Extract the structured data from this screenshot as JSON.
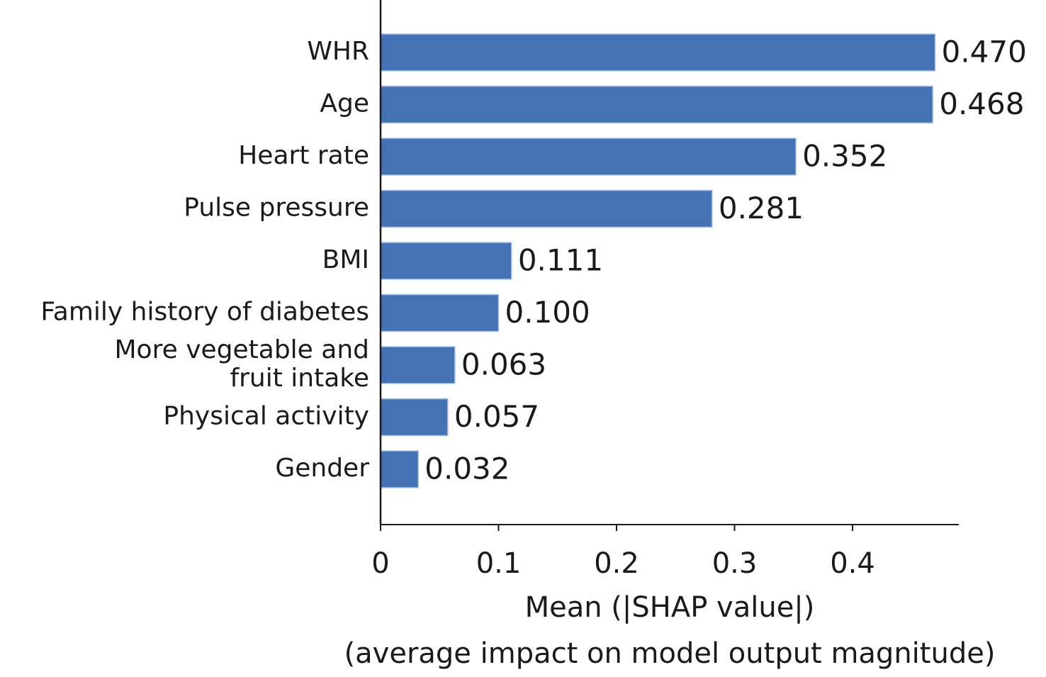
{
  "chart_data": {
    "type": "bar",
    "orientation": "horizontal",
    "categories": [
      [
        "WHR"
      ],
      [
        "Age"
      ],
      [
        "Heart rate"
      ],
      [
        "Pulse pressure"
      ],
      [
        "BMI"
      ],
      [
        "Family history of diabetes"
      ],
      [
        "More vegetable and",
        "fruit intake"
      ],
      [
        "Physical activity"
      ],
      [
        "Gender"
      ]
    ],
    "values": [
      0.47,
      0.468,
      0.352,
      0.281,
      0.111,
      0.1,
      0.063,
      0.057,
      0.032
    ],
    "value_labels": [
      "0.470",
      "0.468",
      "0.352",
      "0.281",
      "0.111",
      "0.100",
      "0.063",
      "0.057",
      "0.032"
    ],
    "xticks": [
      0,
      0.1,
      0.2,
      0.3,
      0.4
    ],
    "xtick_labels": [
      "0",
      "0.1",
      "0.2",
      "0.3",
      "0.4"
    ],
    "xlim": [
      0,
      0.49
    ],
    "xlabel": [
      "Mean (|SHAP value|)",
      "(average impact on model output magnitude)"
    ],
    "ylabel": "",
    "title": "",
    "bar_color": "#4472b4",
    "bar_edge_color": "#a9c3e4",
    "axis_color": "#1a1a1a",
    "grid": false,
    "legend": false
  }
}
